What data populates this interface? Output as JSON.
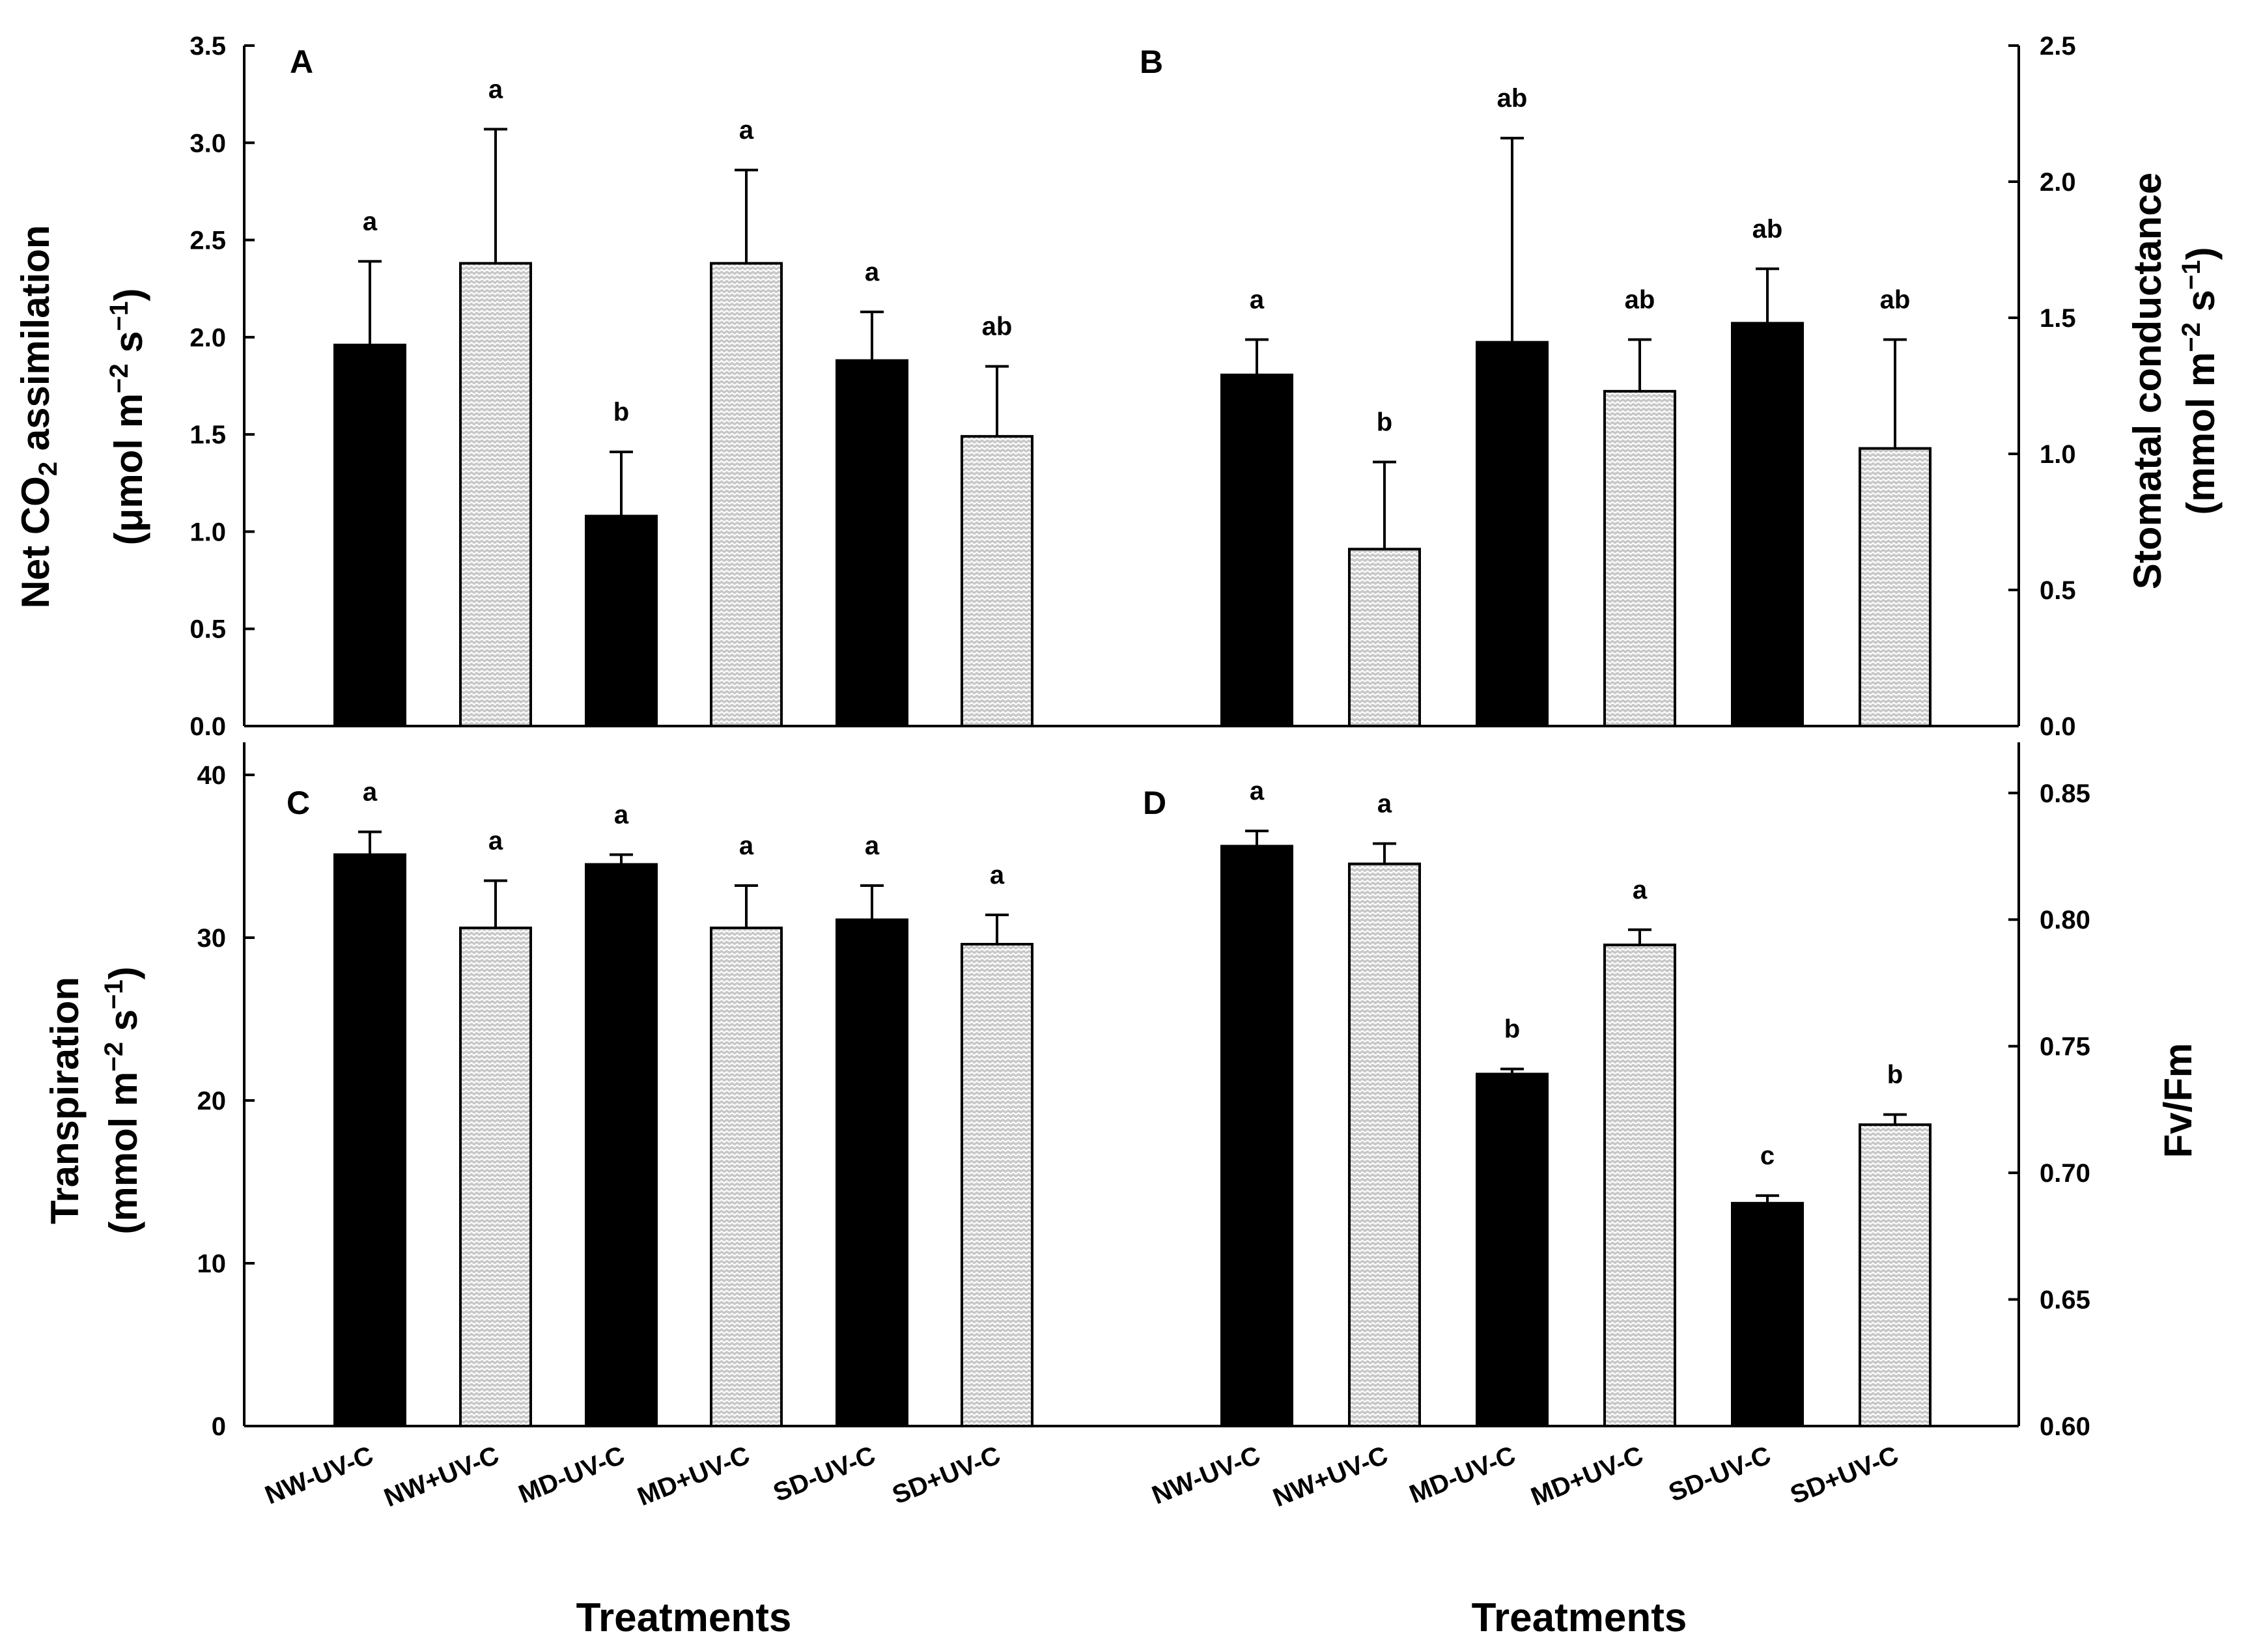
{
  "colors": {
    "dark_bar": "#000000",
    "hatched_bar": "#c8c8c8",
    "axis": "#000000"
  },
  "x_title": "Treatments",
  "chart_data": [
    {
      "id": "A",
      "type": "bar",
      "panel_label": "A",
      "categories": [
        "NW-UV-C",
        "NW+UV-C",
        "MD-UV-C",
        "MD+UV-C",
        "SD-UV-C",
        "SD+UV-C"
      ],
      "values": [
        1.96,
        2.38,
        1.08,
        2.38,
        1.88,
        1.49
      ],
      "errors": [
        0.43,
        0.69,
        0.33,
        0.48,
        0.25,
        0.36
      ],
      "significance": [
        "a",
        "a",
        "b",
        "a",
        "a",
        "ab"
      ],
      "ylabel": "Net CO2 assimilation (μmol m−2 s−1)",
      "ylabel_parts": {
        "pre": "Net CO",
        "sub": "2",
        "post": " assimilation",
        "line2_pre": "(μmol m",
        "sup1": "−2",
        "mid": " s",
        "sup2": "−1",
        "close": ")"
      },
      "yaxis_side": "left",
      "ylim": [
        0,
        3.5
      ],
      "yticks": [
        0.0,
        0.5,
        1.0,
        1.5,
        2.0,
        2.5,
        3.0,
        3.5
      ],
      "ytick_labels": [
        "0.0",
        "0.5",
        "1.0",
        "1.5",
        "2.0",
        "2.5",
        "3.0",
        "3.5"
      ],
      "show_xticklabels": false
    },
    {
      "id": "B",
      "type": "bar",
      "panel_label": "B",
      "categories": [
        "NW-UV-C",
        "NW+UV-C",
        "MD-UV-C",
        "MD+UV-C",
        "SD-UV-C",
        "SD+UV-C"
      ],
      "values": [
        1.29,
        0.65,
        1.41,
        1.23,
        1.48,
        1.02
      ],
      "errors": [
        0.13,
        0.32,
        0.75,
        0.19,
        0.2,
        0.4
      ],
      "significance": [
        "a",
        "b",
        "ab",
        "ab",
        "ab",
        "ab"
      ],
      "ylabel": "Stomatal conductance (mmol m−2 s−1)",
      "ylabel_parts": {
        "pre": "Stomatal conductance",
        "sub": "",
        "post": "",
        "line2_pre": "(mmol m",
        "sup1": "−2",
        "mid": " s",
        "sup2": "−1",
        "close": ")"
      },
      "yaxis_side": "right",
      "ylim": [
        0,
        2.5
      ],
      "yticks": [
        0.0,
        0.5,
        1.0,
        1.5,
        2.0,
        2.5
      ],
      "ytick_labels": [
        "0.0",
        "0.5",
        "1.0",
        "1.5",
        "2.0",
        "2.5"
      ],
      "show_xticklabels": false
    },
    {
      "id": "C",
      "type": "bar",
      "panel_label": "C",
      "categories": [
        "NW-UV-C",
        "NW+UV-C",
        "MD-UV-C",
        "MD+UV-C",
        "SD-UV-C",
        "SD+UV-C"
      ],
      "values": [
        35.1,
        30.6,
        34.5,
        30.6,
        31.1,
        29.6
      ],
      "errors": [
        1.4,
        2.9,
        0.6,
        2.6,
        2.1,
        1.8
      ],
      "significance": [
        "a",
        "a",
        "a",
        "a",
        "a",
        "a"
      ],
      "ylabel": "Transpiration (mmol m−2 s−1)",
      "ylabel_parts": {
        "pre": "Transpiration",
        "sub": "",
        "post": "",
        "line2_pre": "(mmol m",
        "sup1": "−2",
        "mid": " s",
        "sup2": "−1",
        "close": ")"
      },
      "yaxis_side": "left",
      "ylim": [
        0,
        42
      ],
      "yticks": [
        0,
        10,
        20,
        30,
        40
      ],
      "ytick_labels": [
        "0",
        "10",
        "20",
        "30",
        "40"
      ],
      "show_xticklabels": true
    },
    {
      "id": "D",
      "type": "bar",
      "panel_label": "D",
      "categories": [
        "NW-UV-C",
        "NW+UV-C",
        "MD-UV-C",
        "MD+UV-C",
        "SD-UV-C",
        "SD+UV-C"
      ],
      "values": [
        0.829,
        0.822,
        0.739,
        0.79,
        0.688,
        0.719
      ],
      "errors": [
        0.006,
        0.008,
        0.002,
        0.006,
        0.003,
        0.004
      ],
      "significance": [
        "a",
        "a",
        "b",
        "a",
        "c",
        "b"
      ],
      "ylabel": "Fv/Fm",
      "ylabel_parts": {
        "pre": "Fv/Fm",
        "sub": "",
        "post": "",
        "line2_pre": "",
        "sup1": "",
        "mid": "",
        "sup2": "",
        "close": ""
      },
      "yaxis_side": "right",
      "ylim": [
        0.6,
        0.87
      ],
      "yticks": [
        0.6,
        0.65,
        0.7,
        0.75,
        0.8,
        0.85
      ],
      "ytick_labels": [
        "0.60",
        "0.65",
        "0.70",
        "0.75",
        "0.80",
        "0.85"
      ],
      "show_xticklabels": true
    }
  ]
}
